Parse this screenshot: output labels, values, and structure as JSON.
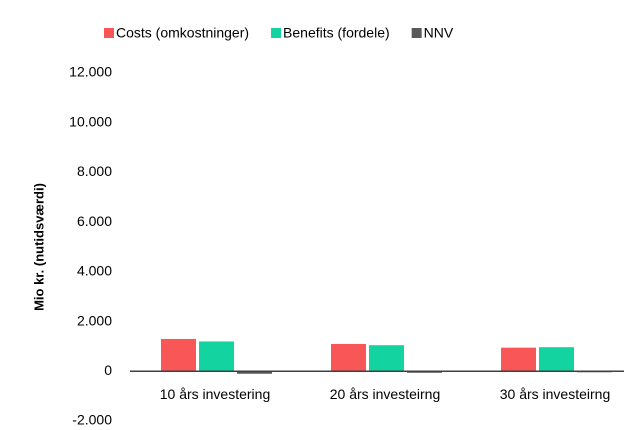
{
  "chart_data": {
    "type": "bar",
    "y_label": "Mio kr. (nutidsværdi)",
    "categories": [
      "10 års investering",
      "20 års investeirng",
      "30 års investeirng"
    ],
    "series": [
      {
        "name": "Costs (omkostninger)",
        "color": "#f95757",
        "values": [
          1300,
          1100,
          950
        ]
      },
      {
        "name": "Benefits (fordele)",
        "color": "#13d4a0",
        "values": [
          1200,
          1050,
          970
        ]
      },
      {
        "name": "NNV",
        "color": "#595959",
        "values": [
          -100,
          -50,
          20
        ]
      }
    ],
    "ylim": [
      -2000,
      12000
    ],
    "yticks": [
      {
        "value": -2000,
        "label": "-2.000"
      },
      0,
      {
        "value": 2000,
        "label": "2.000"
      },
      {
        "value": 4000,
        "label": "4.000"
      },
      {
        "value": 6000,
        "label": "6.000"
      },
      {
        "value": 8000,
        "label": "8.000"
      },
      {
        "value": 10000,
        "label": "10.000"
      },
      {
        "value": 12000,
        "label": "12.000"
      }
    ],
    "legend": "top"
  }
}
